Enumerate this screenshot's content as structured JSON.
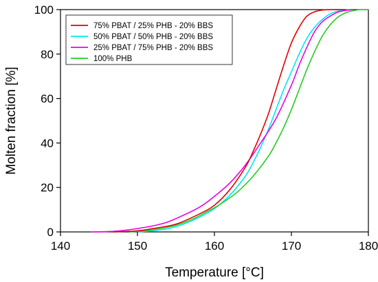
{
  "chart_data": {
    "type": "line",
    "title": "",
    "xlabel": "Temperature [°C]",
    "ylabel": "Molten fraction [%]",
    "xlim": [
      140,
      180
    ],
    "ylim": [
      0,
      100
    ],
    "xticks": [
      140,
      150,
      160,
      170,
      180
    ],
    "yticks": [
      0,
      20,
      40,
      60,
      80,
      100
    ],
    "grid": false,
    "legend_position": "top-left",
    "series": [
      {
        "name": "75% PBAT / 25% PHB - 20% BBS",
        "color": "#e00000",
        "x": [
          147,
          150,
          152,
          155,
          158,
          160,
          162,
          164,
          165,
          166,
          167,
          168,
          169,
          170,
          171,
          172,
          173,
          174,
          175,
          177
        ],
        "y": [
          0,
          0.5,
          1.5,
          3.5,
          8,
          12,
          19,
          29,
          36,
          44,
          53,
          64,
          75,
          85,
          92,
          97,
          99,
          99.8,
          100,
          100
        ]
      },
      {
        "name": "50% PBAT / 50% PHB - 20% BBS",
        "color": "#00e5f0",
        "x": [
          150,
          152,
          154,
          156,
          158,
          160,
          162,
          164,
          165,
          166,
          167,
          168,
          169,
          170,
          171,
          172,
          173,
          174,
          175,
          176,
          177,
          178
        ],
        "y": [
          0,
          0.5,
          1.5,
          3.5,
          6.5,
          10.5,
          16.5,
          25,
          31,
          38,
          46,
          55,
          64,
          72,
          80,
          87,
          92,
          95.5,
          98,
          99.3,
          99.8,
          100
        ]
      },
      {
        "name": "25% PBAT / 75% PHB - 20% BBS",
        "color": "#e600e6",
        "x": [
          144,
          147,
          150,
          153,
          155,
          158,
          160,
          162,
          164,
          166,
          168,
          170,
          171,
          172,
          173,
          174,
          175,
          176,
          177,
          178
        ],
        "y": [
          0,
          0.3,
          1.5,
          3.5,
          6,
          11,
          16,
          22,
          30,
          40,
          51,
          66,
          75,
          83,
          90,
          94.5,
          97,
          98.8,
          99.6,
          100
        ]
      },
      {
        "name": "100% PHB",
        "color": "#22cc22",
        "x": [
          149,
          151,
          153,
          155,
          157,
          159,
          161,
          163,
          165,
          167,
          168,
          169,
          170,
          171,
          172,
          173,
          174,
          175,
          176,
          177,
          178,
          179,
          180
        ],
        "y": [
          0,
          0.5,
          1.5,
          3,
          5.5,
          9,
          13,
          18,
          25,
          34,
          40,
          47,
          55,
          64,
          73,
          81,
          88,
          93,
          96.5,
          98.5,
          99.5,
          100,
          100
        ]
      }
    ]
  }
}
